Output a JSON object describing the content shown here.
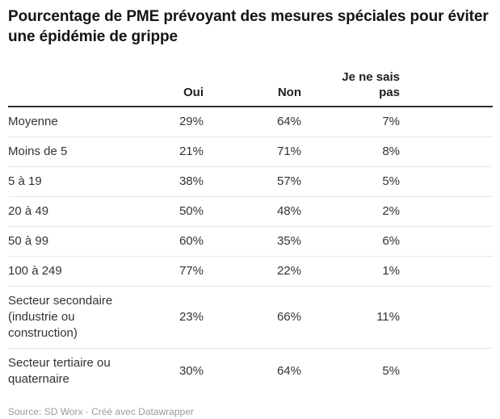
{
  "title": "Pourcentage de PME prévoyant des mesures spéciales pour éviter une épidémie de grippe",
  "chart_data": {
    "type": "table",
    "title": "Pourcentage de PME prévoyant des mesures spéciales pour éviter une épidémie de grippe",
    "columns": {
      "label": "",
      "oui": "Oui",
      "non": "Non",
      "jnsp": "Je ne sais pas"
    },
    "rows": [
      {
        "label": "Moyenne",
        "oui": "29%",
        "non": "64%",
        "jnsp": "7%"
      },
      {
        "label": "Moins de 5",
        "oui": "21%",
        "non": "71%",
        "jnsp": "8%"
      },
      {
        "label": "5 à 19",
        "oui": "38%",
        "non": "57%",
        "jnsp": "5%"
      },
      {
        "label": "20 à 49",
        "oui": "50%",
        "non": "48%",
        "jnsp": "2%"
      },
      {
        "label": "50 à 99",
        "oui": "60%",
        "non": "35%",
        "jnsp": "6%"
      },
      {
        "label": "100 à 249",
        "oui": "77%",
        "non": "22%",
        "jnsp": "1%"
      },
      {
        "label": "Secteur secondaire (industrie ou construction)",
        "oui": "23%",
        "non": "66%",
        "jnsp": "11%"
      },
      {
        "label": "Secteur tertiaire ou quaternaire",
        "oui": "30%",
        "non": "64%",
        "jnsp": "5%"
      }
    ],
    "layout_hints": {
      "number_alignment": "right",
      "header_rule_color": "#2e2e2e",
      "row_rule_color": "#e8e8e8",
      "text_color": "#333333",
      "grid": "horizontal-only"
    }
  },
  "footer": {
    "text": "Source: SD Worx · Créé avec Datawrapper"
  }
}
